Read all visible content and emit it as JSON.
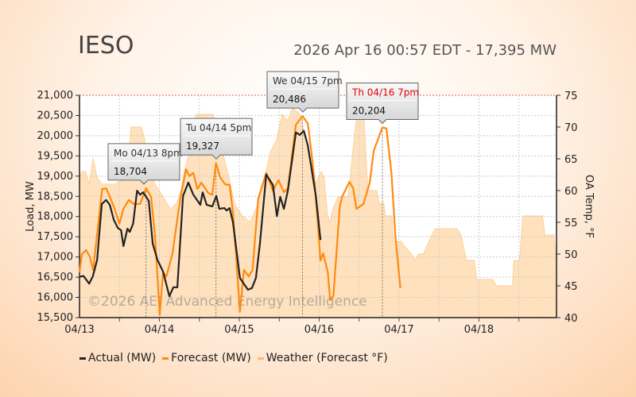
{
  "header": {
    "title": "IESO",
    "status": "2026 Apr 16 00:57 EDT - 17,395 MW"
  },
  "watermark": "©2026 AEI Advanced Energy Intelligence",
  "colors": {
    "actual": "#222222",
    "forecast": "#ff8a10",
    "weather_fill": "#ffe2bd",
    "weather_line": "#ffcf94",
    "accent_red": "#e00000"
  },
  "chart_data": {
    "type": "line",
    "title": "IESO",
    "xlabel": "",
    "ylabel": "Load, MW",
    "y2label": "OA Temp, °F",
    "x_unit": "hours since 04/13 00:00",
    "xlim": [
      0,
      143.3
    ],
    "ylim": [
      15500,
      21000
    ],
    "y2lim": [
      40,
      75
    ],
    "x_ticks": [
      {
        "h": 0,
        "label": "04/13"
      },
      {
        "h": 24,
        "label": "04/14"
      },
      {
        "h": 48,
        "label": "04/15"
      },
      {
        "h": 72,
        "label": "04/16"
      },
      {
        "h": 96,
        "label": "04/17"
      },
      {
        "h": 120,
        "label": "04/18"
      }
    ],
    "y_ticks": [
      "15,500",
      "16,000",
      "16,500",
      "17,000",
      "17,500",
      "18,000",
      "18,500",
      "19,000",
      "19,500",
      "20,000",
      "20,500",
      "21,000"
    ],
    "y2_ticks": [
      "40",
      "45",
      "50",
      "55",
      "60",
      "65",
      "70",
      "75"
    ],
    "legend": [
      "Actual (MW)",
      "Forecast (MW)",
      "Weather (Forecast °F)"
    ],
    "legend_position": "bottom",
    "series": [
      {
        "name": "Actual (MW)",
        "axis": "left",
        "points": [
          [
            0,
            16510
          ],
          [
            1.2,
            16530
          ],
          [
            2.9,
            16340
          ],
          [
            4,
            16520
          ],
          [
            5.3,
            16930
          ],
          [
            6.7,
            18310
          ],
          [
            8,
            18410
          ],
          [
            9.1,
            18290
          ],
          [
            10.3,
            17920
          ],
          [
            11.5,
            17720
          ],
          [
            12.5,
            17660
          ],
          [
            13.2,
            17270
          ],
          [
            14.4,
            17700
          ],
          [
            15.1,
            17620
          ],
          [
            16.1,
            17820
          ],
          [
            17.3,
            18640
          ],
          [
            18.2,
            18540
          ],
          [
            19.1,
            18600
          ],
          [
            20.8,
            18390
          ],
          [
            22,
            17330
          ],
          [
            23.4,
            16930
          ],
          [
            25.1,
            16640
          ],
          [
            27,
            16030
          ],
          [
            28.2,
            16250
          ],
          [
            29.4,
            16250
          ],
          [
            31.1,
            18510
          ],
          [
            32.7,
            18840
          ],
          [
            34.2,
            18540
          ],
          [
            36.3,
            18290
          ],
          [
            37,
            18600
          ],
          [
            38.2,
            18290
          ],
          [
            39.9,
            18250
          ],
          [
            41.1,
            18510
          ],
          [
            42,
            18190
          ],
          [
            43.5,
            18210
          ],
          [
            44.2,
            18150
          ],
          [
            45.1,
            18210
          ],
          [
            46.1,
            17860
          ],
          [
            48.2,
            16480
          ],
          [
            50.6,
            16190
          ],
          [
            51.8,
            16230
          ],
          [
            53,
            16480
          ],
          [
            54.2,
            17330
          ],
          [
            56.1,
            19040
          ],
          [
            58.1,
            18780
          ],
          [
            59.3,
            18010
          ],
          [
            60.3,
            18490
          ],
          [
            61.4,
            18190
          ],
          [
            62.6,
            18640
          ],
          [
            65,
            20080
          ],
          [
            66.2,
            20020
          ],
          [
            67.4,
            20120
          ],
          [
            68.6,
            19760
          ],
          [
            71,
            18510
          ],
          [
            72.4,
            17420
          ]
        ]
      },
      {
        "name": "Forecast (MW)",
        "axis": "left",
        "points": [
          [
            0,
            16620
          ],
          [
            0.7,
            17070
          ],
          [
            2,
            17170
          ],
          [
            3.1,
            17010
          ],
          [
            4.1,
            16680
          ],
          [
            5.5,
            17720
          ],
          [
            6.8,
            18680
          ],
          [
            8,
            18700
          ],
          [
            9.1,
            18490
          ],
          [
            10.3,
            18250
          ],
          [
            12,
            17820
          ],
          [
            13.2,
            18190
          ],
          [
            14.8,
            18410
          ],
          [
            16.3,
            18310
          ],
          [
            18.2,
            18310
          ],
          [
            20,
            18704
          ],
          [
            21.5,
            18490
          ],
          [
            22.7,
            17520
          ],
          [
            24.1,
            15560
          ],
          [
            25.1,
            16620
          ],
          [
            26.1,
            16520
          ],
          [
            27.9,
            17070
          ],
          [
            30.3,
            18450
          ],
          [
            32,
            19170
          ],
          [
            33,
            19000
          ],
          [
            34.2,
            19080
          ],
          [
            35.4,
            18680
          ],
          [
            36.6,
            18840
          ],
          [
            38.7,
            18580
          ],
          [
            39.9,
            18540
          ],
          [
            41,
            19327
          ],
          [
            42.2,
            18980
          ],
          [
            43.7,
            18800
          ],
          [
            45.1,
            18780
          ],
          [
            46.1,
            18110
          ],
          [
            48.2,
            15640
          ],
          [
            49.4,
            16680
          ],
          [
            50.8,
            16520
          ],
          [
            52,
            16680
          ],
          [
            53.7,
            18450
          ],
          [
            56.1,
            19080
          ],
          [
            58.1,
            18640
          ],
          [
            59.8,
            18900
          ],
          [
            61.4,
            18600
          ],
          [
            62.6,
            18700
          ],
          [
            65,
            20270
          ],
          [
            67,
            20486
          ],
          [
            68.6,
            20300
          ],
          [
            69.7,
            19570
          ],
          [
            70.7,
            18780
          ],
          [
            72.4,
            16910
          ],
          [
            73.2,
            17090
          ],
          [
            74.6,
            16620
          ],
          [
            75.3,
            15930
          ],
          [
            76.3,
            16050
          ],
          [
            78.2,
            18250
          ],
          [
            78.9,
            18490
          ],
          [
            81.1,
            18860
          ],
          [
            82.2,
            18700
          ],
          [
            83.2,
            18190
          ],
          [
            85.3,
            18310
          ],
          [
            87.2,
            18840
          ],
          [
            88.4,
            19630
          ],
          [
            91,
            20204
          ],
          [
            92.2,
            20180
          ],
          [
            93.7,
            19090
          ],
          [
            94.9,
            17520
          ],
          [
            96.4,
            16230
          ]
        ]
      },
      {
        "name": "Weather (Forecast °F)",
        "axis": "right",
        "points": [
          [
            0,
            62
          ],
          [
            0.7,
            63
          ],
          [
            1.9,
            63
          ],
          [
            2.9,
            61
          ],
          [
            4.1,
            65
          ],
          [
            5.3,
            62
          ],
          [
            6.7,
            61
          ],
          [
            8.4,
            61
          ],
          [
            10.7,
            61
          ],
          [
            14.3,
            62
          ],
          [
            15.5,
            70
          ],
          [
            18.6,
            70
          ],
          [
            19.6,
            68
          ],
          [
            20.3,
            65
          ],
          [
            21.5,
            62
          ],
          [
            23.9,
            60
          ],
          [
            25.1,
            59
          ],
          [
            27.4,
            57
          ],
          [
            29.1,
            58
          ],
          [
            30.5,
            60
          ],
          [
            31.5,
            63
          ],
          [
            33,
            66
          ],
          [
            35.1,
            72
          ],
          [
            38.7,
            72
          ],
          [
            40.1,
            72
          ],
          [
            41.1,
            70
          ],
          [
            43,
            66
          ],
          [
            44.9,
            62
          ],
          [
            46.5,
            58
          ],
          [
            48.9,
            56
          ],
          [
            51.3,
            55
          ],
          [
            53.7,
            58
          ],
          [
            55.6,
            62
          ],
          [
            57.3,
            66
          ],
          [
            59.2,
            68
          ],
          [
            60.9,
            72
          ],
          [
            62.5,
            71
          ],
          [
            64,
            73
          ],
          [
            66.3,
            72
          ],
          [
            68,
            68
          ],
          [
            69.7,
            63
          ],
          [
            70.9,
            61
          ],
          [
            72.6,
            63
          ],
          [
            73.5,
            62
          ],
          [
            74.5,
            56
          ],
          [
            75.2,
            55
          ],
          [
            76.1,
            57
          ],
          [
            77.6,
            59
          ],
          [
            80.7,
            59
          ],
          [
            83.1,
            71
          ],
          [
            85.4,
            72
          ],
          [
            86.6,
            60
          ],
          [
            89.3,
            60
          ],
          [
            90,
            58
          ],
          [
            91.4,
            58
          ],
          [
            91.9,
            56
          ],
          [
            93.8,
            56
          ],
          [
            94.3,
            52
          ],
          [
            96.7,
            52
          ],
          [
            97.9,
            51
          ],
          [
            99.8,
            50
          ],
          [
            100.7,
            49
          ],
          [
            101.9,
            50
          ],
          [
            103.3,
            50
          ],
          [
            105,
            52
          ],
          [
            106.9,
            54
          ],
          [
            113.4,
            54
          ],
          [
            114.6,
            53
          ],
          [
            116.2,
            49
          ],
          [
            118.6,
            49
          ],
          [
            119.3,
            46
          ],
          [
            124.1,
            46
          ],
          [
            125.3,
            45
          ],
          [
            130.1,
            45
          ],
          [
            130.5,
            49
          ],
          [
            132.2,
            49
          ],
          [
            133.2,
            56
          ],
          [
            139.1,
            56
          ],
          [
            139.8,
            53
          ],
          [
            142.5,
            53
          ],
          [
            143.2,
            49
          ]
        ]
      }
    ],
    "annotations": [
      {
        "h": 20,
        "label": "Mo 04/13 8pm",
        "value": "18,704",
        "mw": 18704,
        "highlight": false
      },
      {
        "h": 41,
        "label": "Tu 04/14 5pm",
        "value": "19,327",
        "mw": 19327,
        "highlight": false
      },
      {
        "h": 67,
        "label": "We 04/15 7pm",
        "value": "20,486",
        "mw": 20486,
        "highlight": false
      },
      {
        "h": 91,
        "label": "Th 04/16 7pm",
        "value": "20,204",
        "mw": 20204,
        "highlight": true
      }
    ]
  }
}
